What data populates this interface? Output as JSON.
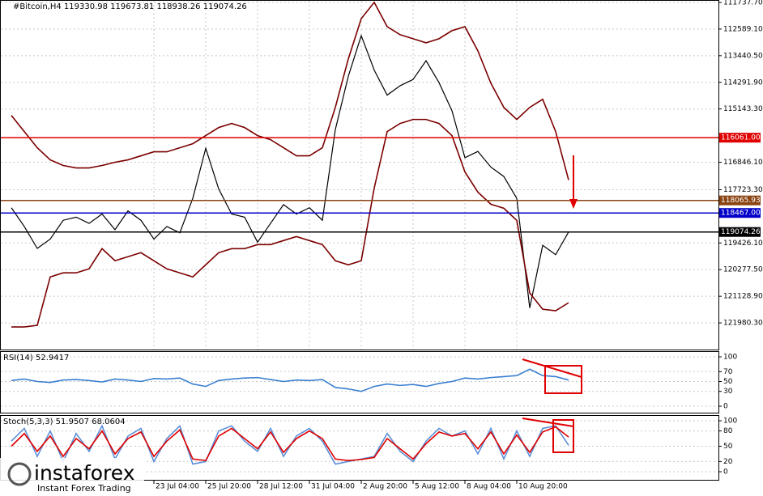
{
  "header": {
    "symbol": "#Bitcoin,H4",
    "ohlc": [
      119330.98,
      119673.81,
      118938.26,
      119074.26
    ]
  },
  "logo": {
    "brand": "instaforex",
    "tagline": "Instant Forex Trading"
  },
  "chart_data": [
    {
      "type": "line",
      "categories": [
        null,
        null,
        null,
        null,
        null,
        null,
        null,
        null,
        null,
        null,
        null,
        "23 Jul 04:00",
        null,
        null,
        null,
        "25 Jul 20:00",
        null,
        null,
        null,
        "28 Jul 12:00",
        null,
        null,
        null,
        "31 Jul 04:00",
        null,
        null,
        null,
        "2 Aug 20:00",
        null,
        null,
        null,
        "5 Aug 12:00",
        null,
        null,
        null,
        "8 Aug 04:00",
        null,
        null,
        null,
        "10 Aug 20:00",
        null,
        null,
        null,
        null
      ],
      "series": [
        {
          "name": "Close",
          "color": "#000000",
          "values": [
            118300,
            118900,
            119600,
            119300,
            118700,
            118600,
            118800,
            118500,
            119000,
            118400,
            118700,
            119300,
            118900,
            119100,
            118000,
            116400,
            117700,
            118500,
            118600,
            119400,
            118800,
            118200,
            118500,
            118300,
            118700,
            115800,
            114100,
            112800,
            113900,
            114700,
            114400,
            114200,
            113600,
            114300,
            115200,
            116700,
            116500,
            117000,
            117300,
            118000,
            121500,
            119500,
            119800,
            119074.26
          ]
        },
        {
          "name": "Upper band",
          "color": "#7b0000",
          "values": [
            122109,
            122109,
            122058,
            120510,
            120381,
            120381,
            120252,
            119607,
            119994,
            119865,
            119736,
            119994,
            120252,
            120381,
            120510,
            120123,
            119736,
            119607,
            119607,
            119478,
            119478,
            119349,
            119220,
            119349,
            119478,
            119994,
            120123,
            119994,
            117672,
            115865,
            115607,
            115478,
            115478,
            115607,
            115994,
            117155,
            117800,
            118187,
            118316,
            118703,
            121026,
            121542,
            121593,
            121335
          ]
        },
        {
          "name": "Lower band",
          "color": "#7b0000",
          "values": [
            115350,
            115865,
            116382,
            116769,
            116949,
            117027,
            117027,
            116949,
            116846,
            116769,
            116640,
            116511,
            116511,
            116382,
            116253,
            115994,
            115737,
            115607,
            115737,
            115994,
            116124,
            116382,
            116640,
            116640,
            116382,
            115092,
            113544,
            112254,
            111736,
            112512,
            112770,
            112898,
            113028,
            112898,
            112640,
            112512,
            113286,
            114318,
            115092,
            115478,
            115092,
            114834,
            115865,
            117413
          ]
        }
      ],
      "levels": [
        {
          "value": 119074.26,
          "color": "#000000"
        },
        {
          "value": 118467,
          "label": "118467.00",
          "color": "#0000c8"
        },
        {
          "value": 118065.93,
          "color": "#8b4513"
        },
        {
          "value": 116061,
          "label": "116061.00",
          "color": "#e00000"
        }
      ],
      "ylim": [
        111660.3,
        122831.7
      ],
      "yticks": [
        {
          "value": 121980.3,
          "label": "121980.30"
        },
        {
          "value": 121128.9,
          "label": "121128.90"
        },
        {
          "value": 120277.5,
          "label": "120277.50"
        },
        {
          "value": 119426.1,
          "label": "119426.10"
        },
        {
          "value": 117723.3,
          "label": "117723.30"
        },
        {
          "value": 116846.1,
          "label": "116846.10"
        },
        {
          "value": 115143.3,
          "label": "115143.30"
        },
        {
          "value": 114291.9,
          "label": "114291.90"
        },
        {
          "value": 113440.5,
          "label": "113440.50"
        },
        {
          "value": 112589.1,
          "label": "112589.10"
        },
        {
          "value": 111737.7,
          "label": "111737.70"
        }
      ],
      "grid": true
    },
    {
      "type": "line",
      "title": "RSI(14)",
      "series": [
        {
          "name": "RSI",
          "color": "#3a7fd0",
          "values": [
            52,
            55,
            50,
            48,
            53,
            54,
            52,
            49,
            55,
            53,
            50,
            56,
            55,
            57,
            45,
            40,
            52,
            55,
            57,
            58,
            54,
            50,
            53,
            52,
            54,
            38,
            35,
            30,
            40,
            45,
            42,
            44,
            40,
            46,
            50,
            57,
            55,
            58,
            60,
            62,
            75,
            62,
            60,
            52.9417
          ]
        }
      ],
      "ylim": [
        0,
        100
      ],
      "yticks": [
        100,
        70,
        50,
        30,
        0
      ],
      "grid": true
    },
    {
      "type": "line",
      "title": "Stoch(5,3,3)",
      "series": [
        {
          "name": "Main",
          "color": "#5b8fd6",
          "values": [
            60,
            85,
            30,
            80,
            20,
            75,
            40,
            90,
            25,
            70,
            85,
            20,
            65,
            90,
            15,
            20,
            80,
            90,
            60,
            40,
            85,
            30,
            70,
            85,
            60,
            15,
            20,
            25,
            30,
            75,
            40,
            20,
            60,
            85,
            70,
            80,
            35,
            85,
            25,
            80,
            30,
            85,
            90,
            51.9507
          ]
        },
        {
          "name": "Signal",
          "color": "#e00000",
          "values": [
            50,
            75,
            40,
            70,
            30,
            65,
            45,
            80,
            35,
            65,
            78,
            30,
            60,
            82,
            25,
            22,
            70,
            85,
            65,
            45,
            78,
            38,
            65,
            80,
            65,
            25,
            22,
            24,
            28,
            65,
            45,
            25,
            55,
            78,
            70,
            75,
            45,
            78,
            35,
            72,
            38,
            78,
            88,
            68.0604
          ]
        }
      ],
      "ylim": [
        0,
        100
      ],
      "yticks": [
        100,
        80,
        50,
        20,
        0
      ],
      "grid": true
    }
  ]
}
